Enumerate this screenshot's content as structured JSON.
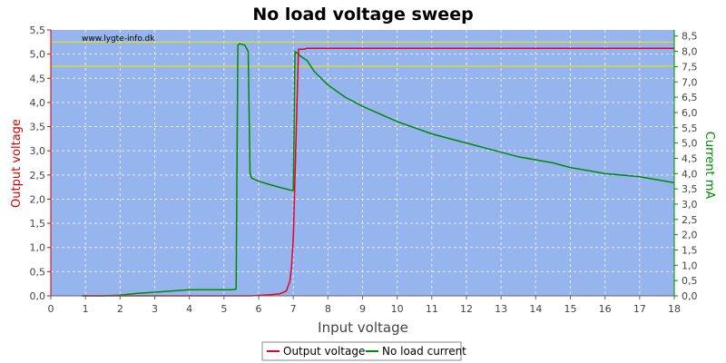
{
  "chart_data": {
    "type": "line",
    "title": "No load voltage sweep",
    "xlabel": "Input voltage",
    "ylabel_left": "Output voltage",
    "ylabel_right": "Current mA",
    "watermark": "www.lygte-info.dk",
    "xlim": [
      0,
      18
    ],
    "ylim_left": [
      0,
      5.5
    ],
    "ylim_right": [
      0,
      8.7
    ],
    "x_ticks": [
      "0",
      "1",
      "2",
      "3",
      "4",
      "5",
      "6",
      "7",
      "8",
      "9",
      "10",
      "11",
      "12",
      "13",
      "14",
      "15",
      "16",
      "17",
      "18"
    ],
    "y_left_ticks": [
      "0,0",
      "0,5",
      "1,0",
      "1,5",
      "2,0",
      "2,5",
      "3,0",
      "3,5",
      "4,0",
      "4,5",
      "5,0",
      "5,5"
    ],
    "y_right_ticks": [
      "0,0",
      "0,5",
      "1,0",
      "1,5",
      "2,0",
      "2,5",
      "3,0",
      "3,5",
      "4,0",
      "4,5",
      "5,0",
      "5,5",
      "6,0",
      "6,5",
      "7,0",
      "7,5",
      "8,0",
      "8,5"
    ],
    "reference_lines_left": [
      5.25,
      4.75
    ],
    "grid": true,
    "legend_position": "bottom-center",
    "colors": {
      "plot_background": "#96b4ee",
      "output_voltage": "#e8001c",
      "no_load_current": "#008a00",
      "reference_line": "#e6e600",
      "left_axis": "#cc0000",
      "right_axis": "#008a00"
    },
    "series": [
      {
        "name": "Output voltage",
        "axis": "left",
        "x": [
          0.9,
          2.0,
          4.0,
          5.8,
          6.3,
          6.6,
          6.8,
          6.9,
          6.95,
          7.0,
          7.05,
          7.15,
          7.3,
          7.4,
          8.0,
          12.0,
          18.0
        ],
        "y": [
          0.0,
          0.0,
          0.0,
          0.0,
          0.02,
          0.04,
          0.1,
          0.3,
          0.6,
          1.2,
          2.5,
          5.1,
          5.1,
          5.12,
          5.12,
          5.12,
          5.12
        ]
      },
      {
        "name": "No load current",
        "axis": "right",
        "x": [
          0.9,
          1.5,
          2.0,
          2.5,
          3.0,
          3.5,
          4.0,
          4.5,
          5.0,
          5.2,
          5.35,
          5.4,
          5.45,
          5.6,
          5.7,
          5.75,
          5.8,
          6.0,
          6.3,
          6.6,
          6.95,
          7.0,
          7.05,
          7.1,
          7.2,
          7.4,
          7.6,
          8.0,
          8.5,
          9.0,
          9.5,
          10.0,
          10.5,
          11.0,
          11.5,
          12.0,
          12.5,
          13.0,
          13.5,
          14.0,
          14.5,
          15.0,
          15.5,
          16.0,
          16.5,
          17.0,
          17.5,
          18.0
        ],
        "y": [
          0.0,
          0.0,
          0.02,
          0.08,
          0.12,
          0.16,
          0.2,
          0.2,
          0.2,
          0.2,
          0.22,
          8.2,
          8.25,
          8.2,
          8.0,
          4.0,
          3.85,
          3.75,
          3.65,
          3.55,
          3.45,
          3.45,
          8.0,
          7.95,
          7.85,
          7.7,
          7.35,
          6.9,
          6.5,
          6.2,
          5.95,
          5.7,
          5.5,
          5.3,
          5.15,
          5.0,
          4.85,
          4.7,
          4.55,
          4.45,
          4.35,
          4.2,
          4.1,
          4.0,
          3.95,
          3.9,
          3.8,
          3.7
        ]
      }
    ]
  }
}
